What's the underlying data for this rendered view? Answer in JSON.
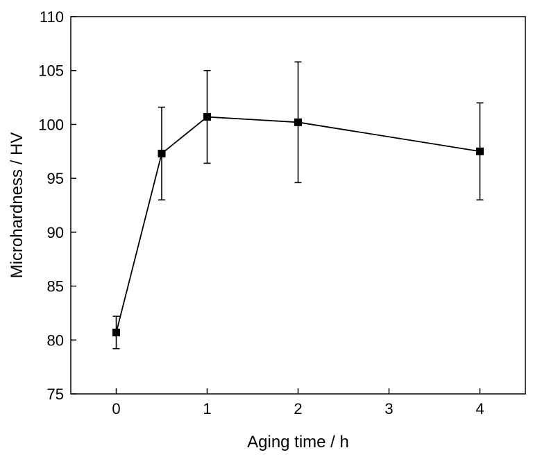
{
  "chart_data": {
    "type": "line",
    "title": "",
    "xlabel": "Aging time / h",
    "ylabel": "Microhardness / HV",
    "xlim": [
      -0.5,
      4.5
    ],
    "ylim": [
      75,
      110
    ],
    "x_ticks": [
      0,
      1,
      2,
      3,
      4
    ],
    "x_tick_labels": [
      "0",
      "1",
      "2",
      "3",
      "4"
    ],
    "y_ticks": [
      75,
      80,
      85,
      90,
      95,
      100,
      105,
      110
    ],
    "y_tick_labels": [
      "75",
      "80",
      "85",
      "90",
      "95",
      "100",
      "105",
      "110"
    ],
    "grid": false,
    "legend": "none",
    "series": [
      {
        "marker": "square",
        "color": "#000000",
        "x": [
          0,
          0.5,
          1,
          2,
          4
        ],
        "y": [
          80.7,
          97.3,
          100.7,
          100.2,
          97.5
        ],
        "error": [
          1.5,
          4.3,
          4.3,
          5.6,
          4.5
        ]
      }
    ]
  }
}
